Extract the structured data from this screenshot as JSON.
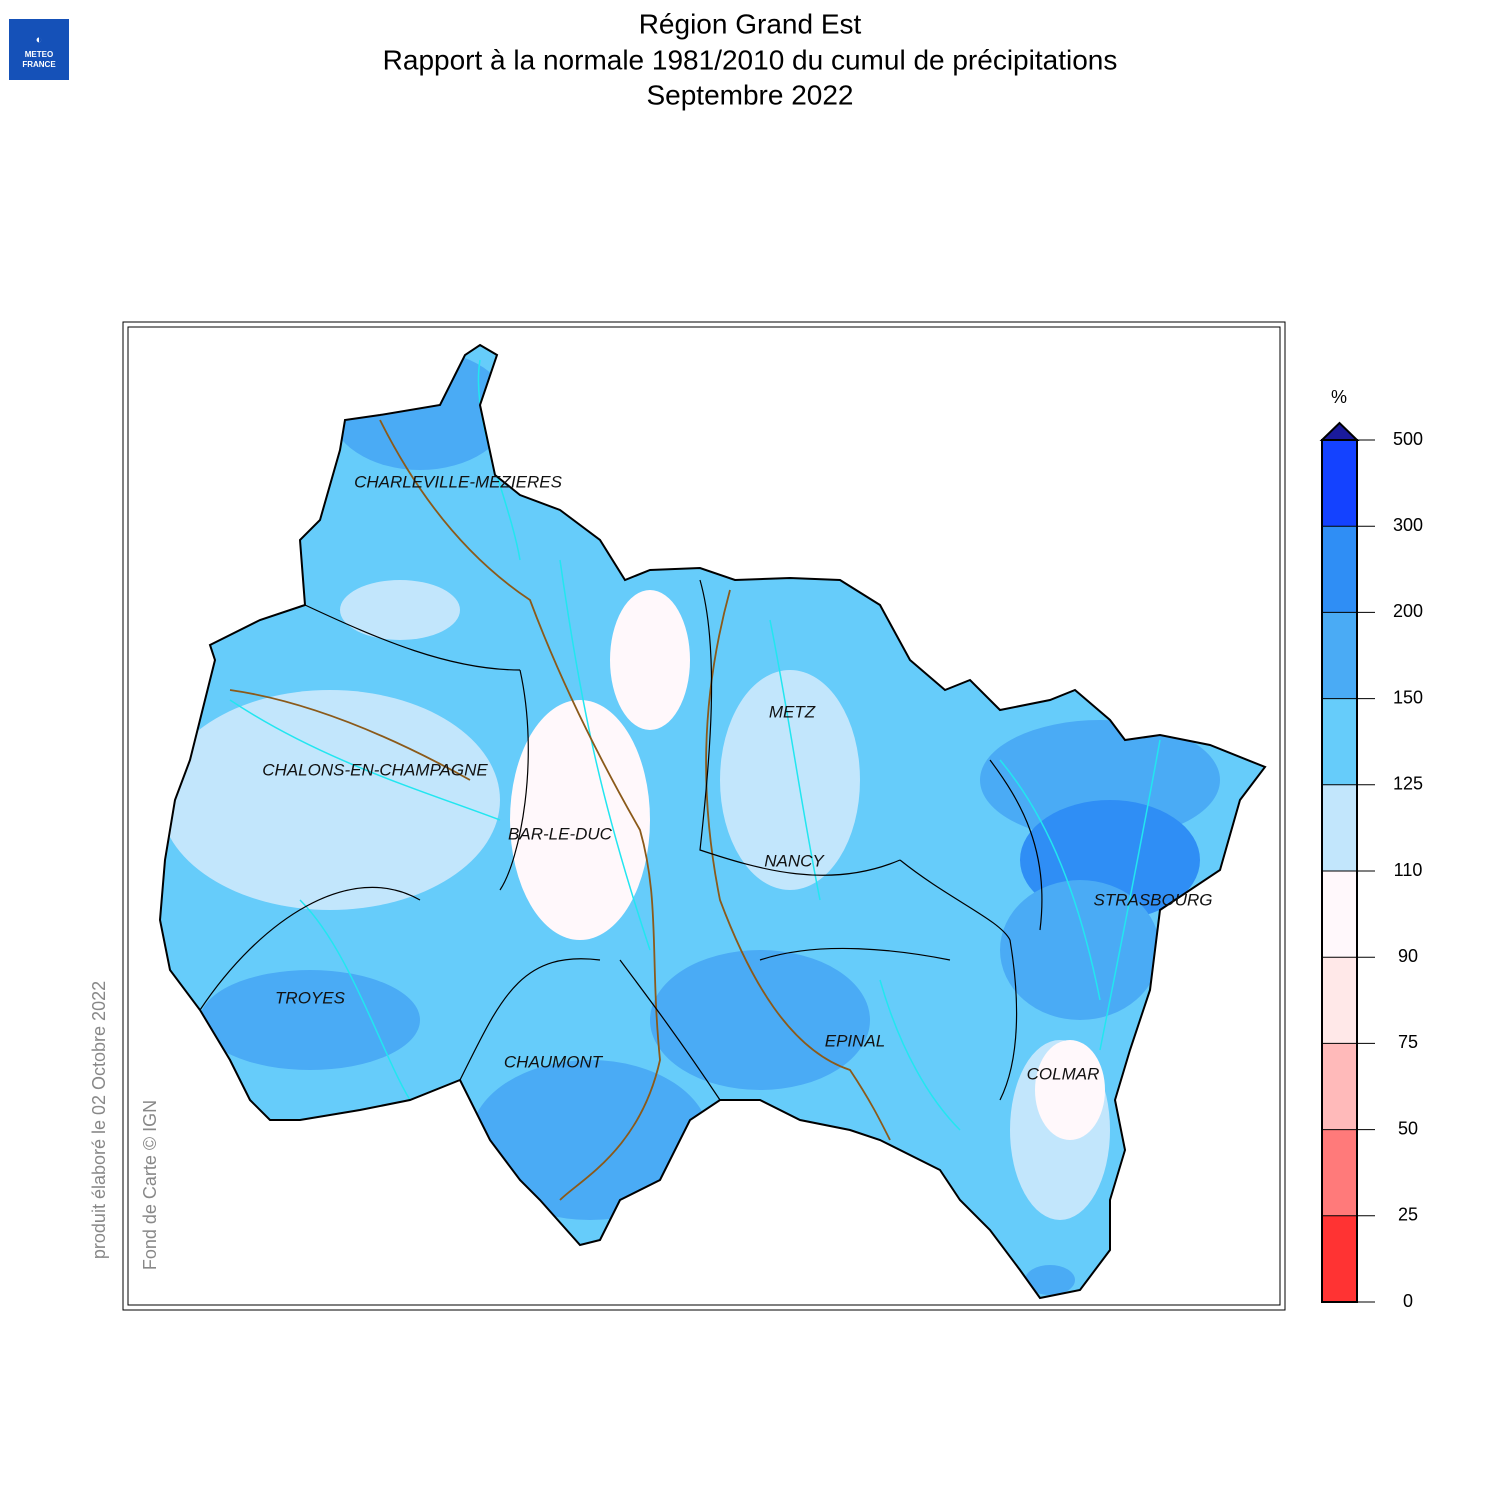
{
  "header": {
    "logo": "METEO FRANCE",
    "title": [
      "Région Grand Est",
      "Rapport à la normale 1981/2010 du cumul de précipitations",
      "Septembre 2022"
    ]
  },
  "map": {
    "cities": [
      "CHARLEVILLE-MEZIERES",
      "CHALONS-EN-CHAMPAGNE",
      "BAR-LE-DUC",
      "METZ",
      "NANCY",
      "STRASBOURG",
      "TROYES",
      "CHAUMONT",
      "EPINAL",
      "COLMAR"
    ],
    "credits": [
      "produit élaboré le 02 Octobre 2022",
      "Fond de Carte © IGN"
    ]
  },
  "legend": {
    "unit": "%",
    "ticks": [
      0,
      25,
      50,
      75,
      90,
      110,
      125,
      150,
      200,
      300,
      500
    ],
    "colors": [
      "#ff3333",
      "#ff7a7a",
      "#ffbaba",
      "#ffe8e8",
      "#fff8fb",
      "#c2e6fc",
      "#66ccfa",
      "#4aabf5",
      "#2f8ef5",
      "#1442ff"
    ],
    "arrow_color": "#1a1a9c"
  }
}
